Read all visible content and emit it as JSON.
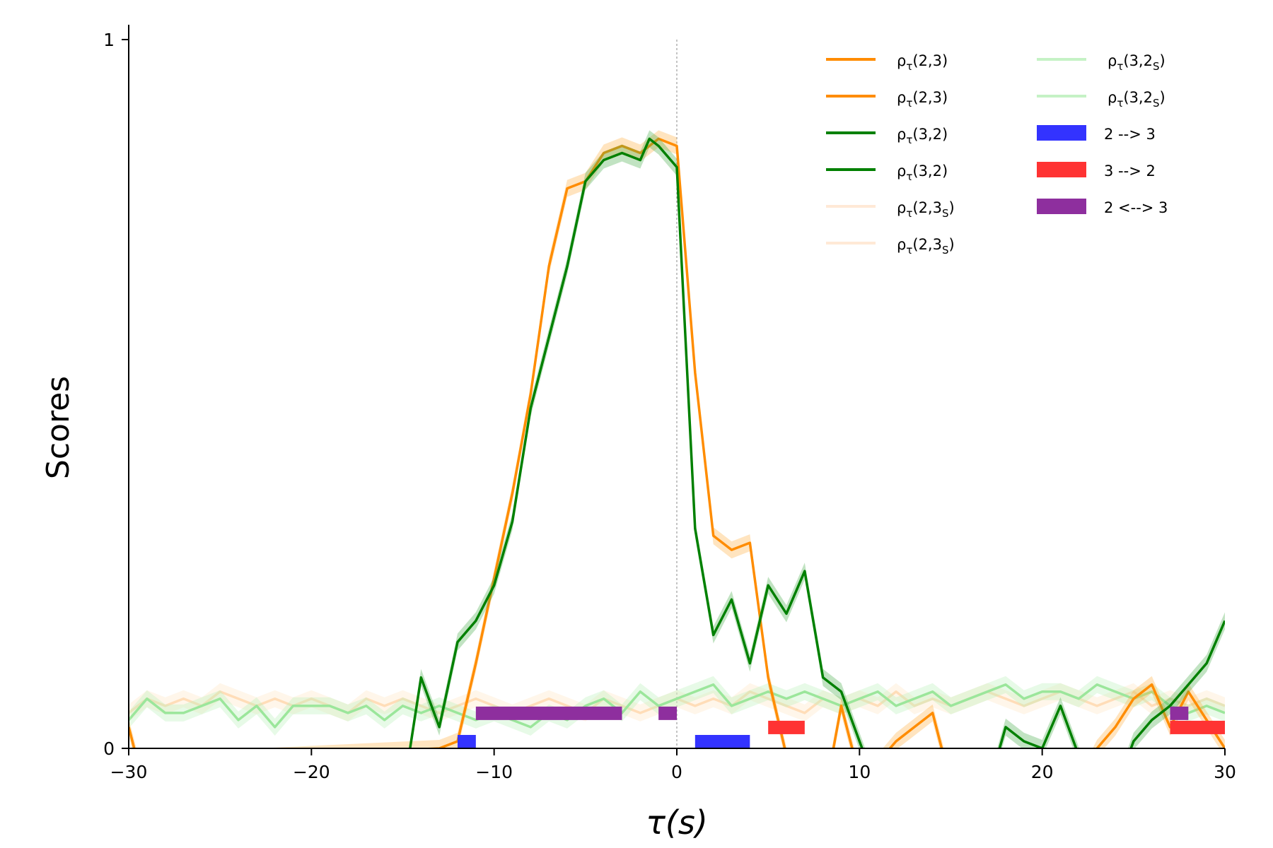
{
  "chart_data": {
    "type": "line",
    "xlabel": "τ(s)",
    "ylabel": "Scores",
    "xlim": [
      -30,
      30
    ],
    "ylim": [
      0,
      1
    ],
    "x_ticks": [
      "−30",
      "−20",
      "−10",
      "0",
      "10",
      "20",
      "30"
    ],
    "y_ticks": [
      "0",
      "1"
    ],
    "reference_lines": {
      "x": 0,
      "y": 0,
      "style": "dashed gray"
    },
    "legend": {
      "placement": "top-right",
      "columns": 2
    },
    "series": [
      {
        "name": "ρτ(2,3)",
        "color": "#ff8c00",
        "band_color": "#ffb347",
        "x": [
          -30,
          -29.5,
          -13,
          -12,
          -11,
          -10,
          -9,
          -8,
          -7,
          -6,
          -5,
          -4,
          -3,
          -2,
          -1,
          0,
          1,
          2,
          3,
          4,
          5,
          6,
          7,
          8,
          9,
          10,
          11,
          12,
          13,
          14,
          15,
          22,
          23,
          24,
          25,
          26,
          27,
          28,
          29,
          30
        ],
        "y": [
          0.03,
          -0.02,
          0.0,
          0.01,
          0.12,
          0.24,
          0.36,
          0.5,
          0.68,
          0.79,
          0.8,
          0.84,
          0.85,
          0.84,
          0.86,
          0.85,
          0.53,
          0.3,
          0.28,
          0.29,
          0.1,
          -0.01,
          -0.05,
          -0.08,
          0.06,
          -0.04,
          -0.02,
          0.01,
          0.03,
          0.05,
          -0.05,
          -0.05,
          0.0,
          0.03,
          0.07,
          0.09,
          0.03,
          0.08,
          0.04,
          0.0
        ]
      },
      {
        "name": "ρτ(3,2)",
        "color": "#008000",
        "band_color": "#4caf50",
        "x": [
          -14.6,
          -14,
          -13,
          -12,
          -11,
          -10,
          -9,
          -8,
          -7,
          -6,
          -5,
          -4,
          -3,
          -2,
          -1.5,
          -1,
          0,
          1,
          2,
          3,
          4,
          5,
          6,
          7,
          8,
          9,
          10,
          11,
          17,
          18,
          19,
          20,
          21,
          22,
          23,
          24,
          25,
          26,
          27,
          28,
          29,
          30
        ],
        "y": [
          0.0,
          0.1,
          0.03,
          0.15,
          0.18,
          0.23,
          0.32,
          0.48,
          0.58,
          0.68,
          0.8,
          0.83,
          0.84,
          0.83,
          0.86,
          0.85,
          0.82,
          0.31,
          0.16,
          0.21,
          0.12,
          0.23,
          0.19,
          0.25,
          0.1,
          0.08,
          0.01,
          -0.06,
          -0.06,
          0.03,
          0.01,
          0.0,
          0.06,
          -0.01,
          -0.06,
          -0.06,
          0.01,
          0.04,
          0.06,
          0.09,
          0.12,
          0.18
        ]
      },
      {
        "name": "ρτ(2,3S)",
        "color": "#ffddb8",
        "band_color": "#ffe4c4",
        "x": [
          -30,
          -29,
          -28,
          -27,
          -26,
          -25,
          -24,
          -23,
          -22,
          -21,
          -20,
          -19,
          -18,
          -17,
          -16,
          -15,
          -14,
          -13,
          -12,
          -11,
          -10,
          -9,
          -8,
          -7,
          -6,
          -5,
          -4,
          -3,
          -2,
          -1,
          0,
          1,
          2,
          3,
          4,
          5,
          6,
          7,
          8,
          9,
          10,
          11,
          12,
          13,
          14,
          15,
          16,
          17,
          18,
          19,
          20,
          21,
          22,
          23,
          24,
          25,
          26,
          27,
          28,
          29,
          30
        ],
        "y": [
          0.05,
          0.07,
          0.06,
          0.07,
          0.06,
          0.08,
          0.07,
          0.06,
          0.07,
          0.06,
          0.07,
          0.06,
          0.05,
          0.07,
          0.06,
          0.07,
          0.06,
          0.05,
          0.06,
          0.07,
          0.06,
          0.05,
          0.06,
          0.07,
          0.06,
          0.05,
          0.07,
          0.06,
          0.05,
          0.06,
          0.07,
          0.06,
          0.07,
          0.06,
          0.08,
          0.07,
          0.06,
          0.05,
          0.07,
          0.06,
          0.07,
          0.06,
          0.08,
          0.06,
          0.07,
          0.06,
          0.07,
          0.08,
          0.07,
          0.06,
          0.07,
          0.08,
          0.07,
          0.06,
          0.07,
          0.08,
          0.06,
          0.07,
          0.06,
          0.07,
          0.06
        ]
      },
      {
        "name": "ρτ(3,2S)",
        "color": "#9be69b",
        "band_color": "#b9f0b9",
        "x": [
          -30,
          -29,
          -28,
          -27,
          -26,
          -25,
          -24,
          -23,
          -22,
          -21,
          -20,
          -19,
          -18,
          -17,
          -16,
          -15,
          -14,
          -13,
          -12,
          -11,
          -10,
          -9,
          -8,
          -7,
          -6,
          -5,
          -4,
          -3,
          -2,
          -1,
          0,
          1,
          2,
          3,
          4,
          5,
          6,
          7,
          8,
          9,
          10,
          11,
          12,
          13,
          14,
          15,
          16,
          17,
          18,
          19,
          20,
          21,
          22,
          23,
          24,
          25,
          26,
          27,
          28,
          29,
          30
        ],
        "y": [
          0.04,
          0.07,
          0.05,
          0.05,
          0.06,
          0.07,
          0.04,
          0.06,
          0.03,
          0.06,
          0.06,
          0.06,
          0.05,
          0.06,
          0.04,
          0.06,
          0.05,
          0.06,
          0.05,
          0.04,
          0.05,
          0.04,
          0.03,
          0.05,
          0.04,
          0.06,
          0.07,
          0.05,
          0.08,
          0.06,
          0.07,
          0.08,
          0.09,
          0.06,
          0.07,
          0.08,
          0.07,
          0.08,
          0.07,
          0.06,
          0.07,
          0.08,
          0.06,
          0.07,
          0.08,
          0.06,
          0.07,
          0.08,
          0.09,
          0.07,
          0.08,
          0.08,
          0.07,
          0.09,
          0.08,
          0.07,
          0.08,
          0.06,
          0.05,
          0.06,
          0.05
        ]
      }
    ],
    "significance_bars": [
      {
        "name": "2 --> 3",
        "color": "#3333ff",
        "level": 0.0,
        "intervals": [
          [
            -12,
            -11
          ],
          [
            1,
            4
          ]
        ]
      },
      {
        "name": "3 --> 2",
        "color": "#ff3333",
        "level": 0.02,
        "intervals": [
          [
            5,
            7
          ],
          [
            27,
            30
          ]
        ]
      },
      {
        "name": "2 <--> 3",
        "color": "#8e2f9e",
        "level": 0.04,
        "intervals": [
          [
            -11,
            -3
          ],
          [
            -1,
            0
          ],
          [
            27,
            28
          ]
        ]
      }
    ],
    "legend_entries": [
      {
        "label": "ρτ(2,3)",
        "base": "ρ",
        "sub": "τ",
        "args": "(2,3)",
        "argsub": "",
        "argtail": "",
        "color": "#ff8c00",
        "kind": "line"
      },
      {
        "label": "ρτ(2,3)",
        "base": "ρ",
        "sub": "τ",
        "args": "(2,3)",
        "argsub": "",
        "argtail": "",
        "color": "#ff8c00",
        "kind": "line"
      },
      {
        "label": "ρτ(3,2)",
        "base": "ρ",
        "sub": "τ",
        "args": "(3,2)",
        "argsub": "",
        "argtail": "",
        "color": "#008000",
        "kind": "line"
      },
      {
        "label": "ρτ(3,2)",
        "base": "ρ",
        "sub": "τ",
        "args": "(3,2)",
        "argsub": "",
        "argtail": "",
        "color": "#008000",
        "kind": "line"
      },
      {
        "label": "ρτ(2,3S)",
        "base": "ρ",
        "sub": "τ",
        "args": "(2,3",
        "argsub": "S",
        "argtail": ")",
        "color": "#ffe9d6",
        "kind": "line"
      },
      {
        "label": "ρτ(2,3S)",
        "base": "ρ",
        "sub": "τ",
        "args": "(2,3",
        "argsub": "S",
        "argtail": ")",
        "color": "#ffe9d6",
        "kind": "line"
      },
      {
        "label": "ρτ(3,2S)",
        "base": "ρ",
        "sub": "τ",
        "args": "(3,2",
        "argsub": "S",
        "argtail": ")",
        "color": "#c5f2c5",
        "kind": "line"
      },
      {
        "label": "ρτ(3,2S)",
        "base": "ρ",
        "sub": "τ",
        "args": "(3,2",
        "argsub": "S",
        "argtail": ")",
        "color": "#c5f2c5",
        "kind": "line"
      },
      {
        "label": "2 --> 3",
        "text": "2 --> 3",
        "color": "#3333ff",
        "kind": "patch"
      },
      {
        "label": "3 --> 2",
        "text": "3 --> 2",
        "color": "#ff3333",
        "kind": "patch"
      },
      {
        "label": "2 <--> 3",
        "text": "2 <--> 3",
        "color": "#8e2f9e",
        "kind": "patch"
      }
    ]
  }
}
